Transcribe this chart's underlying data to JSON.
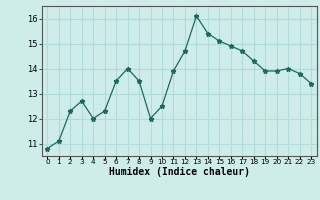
{
  "x": [
    0,
    1,
    2,
    3,
    4,
    5,
    6,
    7,
    8,
    9,
    10,
    11,
    12,
    13,
    14,
    15,
    16,
    17,
    18,
    19,
    20,
    21,
    22,
    23
  ],
  "y": [
    10.8,
    11.1,
    12.3,
    12.7,
    12.0,
    12.3,
    13.5,
    14.0,
    13.5,
    12.0,
    12.5,
    13.9,
    14.7,
    16.1,
    15.4,
    15.1,
    14.9,
    14.7,
    14.3,
    13.9,
    13.9,
    14.0,
    13.8,
    13.4
  ],
  "line_color": "#1a6b5e",
  "marker": "*",
  "bg_color": "#ceecea",
  "grid_color": "#b0dbd8",
  "xlabel": "Humidex (Indice chaleur)",
  "ylim": [
    10.5,
    16.5
  ],
  "xlim": [
    -0.5,
    23.5
  ],
  "yticks": [
    11,
    12,
    13,
    14,
    15,
    16
  ],
  "xtick_labels": [
    "0",
    "1",
    "2",
    "3",
    "4",
    "5",
    "6",
    "7",
    "8",
    "9",
    "10",
    "11",
    "12",
    "13",
    "14",
    "15",
    "16",
    "17",
    "18",
    "19",
    "20",
    "21",
    "22",
    "23"
  ]
}
